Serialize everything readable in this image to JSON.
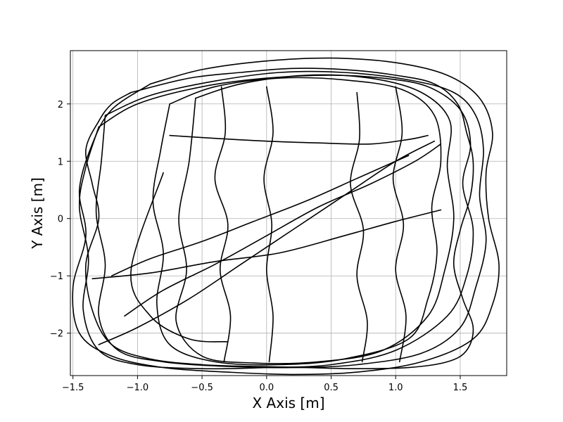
{
  "chart_data": {
    "type": "line",
    "title": "",
    "xlabel": "X Axis [m]",
    "ylabel": "Y Axis [m]",
    "xlim": [
      -1.52,
      1.86
    ],
    "ylim": [
      -2.74,
      2.93
    ],
    "xticks": [
      -1.5,
      -1.0,
      -0.5,
      0.0,
      0.5,
      1.0,
      1.5
    ],
    "xtick_labels": [
      "−1.5",
      "−1.0",
      "−0.5",
      "0.0",
      "0.5",
      "1.0",
      "1.5"
    ],
    "yticks": [
      -2,
      -1,
      0,
      1,
      2
    ],
    "ytick_labels": [
      "−2",
      "−1",
      "0",
      "1",
      "2"
    ],
    "grid": true,
    "line_color": "#000000",
    "series": [
      {
        "x": [
          -1.05,
          -0.6,
          -0.2,
          0.2,
          0.6,
          1.0,
          1.3,
          1.48,
          1.55,
          1.6,
          1.58,
          1.5,
          1.45,
          1.52,
          1.6,
          1.55,
          1.4,
          1.1,
          0.7,
          0.3,
          -0.1,
          -0.5,
          -0.9,
          -1.2,
          -1.35,
          -1.4,
          -1.3,
          -1.35,
          -1.4,
          -1.3,
          -1.2,
          -1.05
        ],
        "y": [
          2.2,
          2.45,
          2.55,
          2.62,
          2.6,
          2.5,
          2.35,
          2.0,
          1.5,
          1.0,
          0.4,
          -0.2,
          -0.8,
          -1.4,
          -1.9,
          -2.3,
          -2.5,
          -2.6,
          -2.62,
          -2.6,
          -2.58,
          -2.55,
          -2.45,
          -2.2,
          -1.6,
          -0.8,
          0.0,
          0.6,
          1.2,
          1.7,
          2.0,
          2.2
        ]
      },
      {
        "x": [
          -0.9,
          -0.5,
          0.0,
          0.5,
          1.0,
          1.4,
          1.65,
          1.75,
          1.7,
          1.72,
          1.8,
          1.75,
          1.6,
          1.2,
          0.7,
          0.2,
          -0.3,
          -0.8,
          -1.2,
          -1.45,
          -1.5,
          -1.4,
          -1.45,
          -1.35,
          -1.2,
          -0.9
        ],
        "y": [
          2.35,
          2.6,
          2.75,
          2.8,
          2.72,
          2.5,
          2.1,
          1.5,
          0.8,
          0.0,
          -0.8,
          -1.5,
          -2.1,
          -2.5,
          -2.68,
          -2.72,
          -2.68,
          -2.6,
          -2.4,
          -2.0,
          -1.2,
          -0.3,
          0.5,
          1.3,
          1.9,
          2.35
        ]
      },
      {
        "x": [
          -0.75,
          -0.4,
          0.1,
          0.6,
          1.05,
          1.3,
          1.35,
          1.28,
          1.32,
          1.25,
          1.1,
          0.6,
          0.1,
          -0.4,
          -0.75,
          -0.85,
          -0.8,
          -0.88,
          -0.82,
          -0.75
        ],
        "y": [
          2.0,
          2.3,
          2.45,
          2.42,
          2.25,
          1.8,
          1.0,
          0.2,
          -0.6,
          -1.4,
          -2.1,
          -2.45,
          -2.55,
          -2.5,
          -2.2,
          -1.5,
          -0.6,
          0.3,
          1.2,
          2.0
        ]
      },
      {
        "x": [
          -1.25,
          -0.9,
          -0.4,
          0.1,
          0.6,
          1.1,
          1.45,
          1.62,
          1.68,
          1.65,
          1.7,
          1.62,
          1.5,
          1.2,
          0.7,
          0.2,
          -0.3,
          -0.8,
          -1.15,
          -1.3,
          -1.25,
          -1.32,
          -1.28,
          -1.25
        ],
        "y": [
          1.8,
          2.15,
          2.4,
          2.55,
          2.55,
          2.42,
          2.2,
          1.8,
          1.2,
          0.4,
          -0.4,
          -1.2,
          -1.9,
          -2.35,
          -2.55,
          -2.6,
          -2.58,
          -2.5,
          -2.3,
          -1.7,
          -0.8,
          0.1,
          1.0,
          1.8
        ]
      },
      {
        "x": [
          -1.3,
          -1.0,
          -0.5,
          0.0,
          0.5,
          0.9,
          1.25,
          1.5,
          1.58,
          1.52,
          1.6,
          1.55,
          1.4,
          1.0,
          0.5,
          0.0,
          -0.5,
          -1.0,
          -1.3,
          -1.42,
          -1.38,
          -1.45,
          -1.4,
          -1.3
        ],
        "y": [
          1.6,
          2.0,
          2.3,
          2.45,
          2.5,
          2.45,
          2.3,
          1.9,
          1.3,
          0.6,
          -0.2,
          -1.0,
          -1.7,
          -2.3,
          -2.55,
          -2.6,
          -2.62,
          -2.55,
          -2.3,
          -1.6,
          -0.7,
          0.2,
          0.9,
          1.6
        ]
      },
      {
        "x": [
          -0.55,
          -0.2,
          0.3,
          0.8,
          1.2,
          1.42,
          1.4,
          1.45,
          1.38,
          1.25,
          0.9,
          0.4,
          -0.1,
          -0.5,
          -0.7,
          -0.62,
          -0.68,
          -0.6,
          -0.55
        ],
        "y": [
          2.1,
          2.35,
          2.5,
          2.45,
          2.2,
          1.7,
          0.9,
          0.0,
          -0.9,
          -1.7,
          -2.3,
          -2.5,
          -2.52,
          -2.4,
          -1.8,
          -0.9,
          0.0,
          1.0,
          2.1
        ]
      },
      {
        "x": [
          -1.3,
          -1.0,
          -0.6,
          -0.2,
          0.2,
          0.6,
          1.0,
          1.3
        ],
        "y": [
          -2.2,
          -1.9,
          -1.4,
          -0.8,
          -0.2,
          0.4,
          1.0,
          1.35
        ]
      },
      {
        "x": [
          -1.1,
          -0.8,
          -0.4,
          0.0,
          0.4,
          0.8,
          1.15,
          1.35
        ],
        "y": [
          -1.7,
          -1.25,
          -0.8,
          -0.3,
          0.2,
          0.6,
          1.0,
          1.3
        ]
      },
      {
        "x": [
          -1.2,
          -0.9,
          -0.5,
          -0.1,
          0.3,
          0.7,
          1.1
        ],
        "y": [
          -1.0,
          -0.7,
          -0.4,
          -0.05,
          0.3,
          0.7,
          1.1
        ]
      },
      {
        "x": [
          -0.3,
          -0.6,
          -0.9,
          -1.05,
          -0.8
        ],
        "y": [
          -2.15,
          -2.1,
          -1.7,
          -0.9,
          0.8
        ]
      },
      {
        "x": [
          0.0,
          0.05,
          -0.02,
          0.04,
          0.0,
          0.05,
          0.02
        ],
        "y": [
          2.3,
          1.5,
          0.7,
          -0.1,
          -0.9,
          -1.7,
          -2.5
        ]
      },
      {
        "x": [
          0.7,
          0.72,
          0.65,
          0.75,
          0.7,
          0.78,
          0.74
        ],
        "y": [
          2.2,
          1.4,
          0.6,
          -0.2,
          -1.0,
          -1.8,
          -2.5
        ]
      },
      {
        "x": [
          -0.35,
          -0.32,
          -0.4,
          -0.3,
          -0.36,
          -0.28,
          -0.33
        ],
        "y": [
          2.3,
          1.5,
          0.7,
          -0.1,
          -0.9,
          -1.7,
          -2.5
        ]
      },
      {
        "x": [
          1.0,
          1.05,
          0.98,
          1.06,
          1.0,
          1.08,
          1.03
        ],
        "y": [
          2.3,
          1.5,
          0.7,
          -0.1,
          -0.9,
          -1.7,
          -2.5
        ]
      },
      {
        "x": [
          -0.75,
          -0.4,
          0.0,
          0.4,
          0.8,
          1.1,
          1.25
        ],
        "y": [
          1.45,
          1.4,
          1.35,
          1.32,
          1.3,
          1.38,
          1.45
        ]
      },
      {
        "x": [
          -1.35,
          -0.9,
          -0.4,
          0.1,
          0.6,
          1.0,
          1.35
        ],
        "y": [
          -1.05,
          -0.95,
          -0.75,
          -0.6,
          -0.3,
          -0.05,
          0.15
        ]
      }
    ]
  }
}
